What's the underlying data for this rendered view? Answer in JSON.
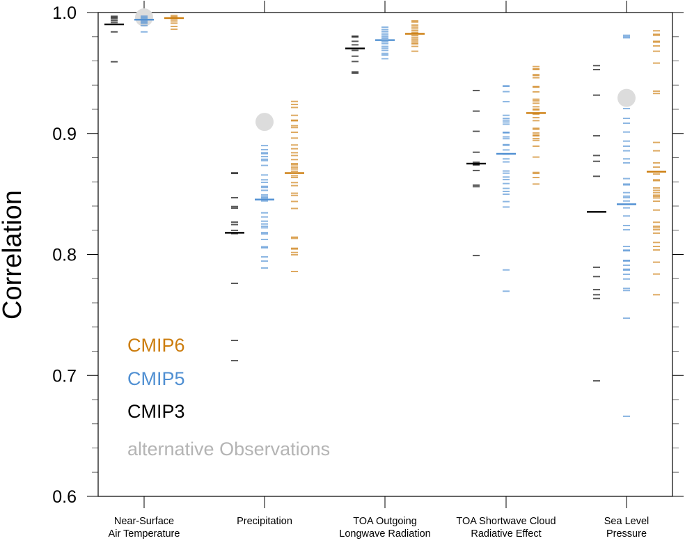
{
  "chart_data": {
    "type": "scatter",
    "title": "",
    "xlabel": "",
    "ylabel": "Correlation",
    "ylim": [
      0.6,
      1.0
    ],
    "yticks": [
      "0.6",
      "0.7",
      "0.8",
      "0.9",
      "1.0"
    ],
    "grid": false,
    "legend_placement": "bottom-left",
    "categories": [
      [
        "Near-Surface",
        "Air Temperature"
      ],
      [
        "Precipitation"
      ],
      [
        "TOA Outgoing",
        "Longwave Radiation"
      ],
      [
        "TOA Shortwave Cloud",
        "Radiative Effect"
      ],
      [
        "Sea Level",
        "Pressure"
      ]
    ],
    "legend": [
      {
        "label": "CMIP6",
        "color": "#cc7d0e"
      },
      {
        "label": "CMIP5",
        "color": "#4f8fd2"
      },
      {
        "label": "CMIP3",
        "color": "#000000"
      },
      {
        "label": "alternative Observations",
        "color": "#b4b4b4"
      }
    ],
    "series": [
      {
        "name": "CMIP3",
        "color": "#000000",
        "means": [
          0.9902,
          0.8179,
          0.9703,
          0.8751,
          0.8352
        ],
        "members": [
          [
            0.9969,
            0.996,
            0.995,
            0.9935,
            0.992,
            0.9905,
            0.984,
            0.9593
          ],
          [
            0.8675,
            0.867,
            0.8469,
            0.8396,
            0.8383,
            0.8267,
            0.8247,
            0.8199,
            0.8172,
            0.7761,
            0.7289,
            0.7122
          ],
          [
            0.9805,
            0.9797,
            0.9762,
            0.9733,
            0.9687,
            0.9639,
            0.9595,
            0.9509,
            0.9499
          ],
          [
            0.9355,
            0.9185,
            0.9018,
            0.8845,
            0.8762,
            0.8745,
            0.874,
            0.8694,
            0.8573,
            0.856,
            0.7991
          ],
          [
            0.9561,
            0.9528,
            0.9317,
            0.8981,
            0.8818,
            0.877,
            0.8646,
            0.7894,
            0.7817,
            0.7709,
            0.7667,
            0.7636,
            0.6955
          ]
        ]
      },
      {
        "name": "CMIP5",
        "color": "#4f8fd2",
        "means": [
          0.9941,
          0.8454,
          0.9772,
          0.8832,
          0.8415
        ],
        "members": [
          [
            0.997,
            0.996,
            0.995,
            0.993,
            0.992,
            0.991,
            0.9892,
            0.984
          ],
          [
            0.89,
            0.8866,
            0.8841,
            0.8833,
            0.8809,
            0.8787,
            0.8776,
            0.8736,
            0.8657,
            0.8617,
            0.8596,
            0.8563,
            0.8554,
            0.853,
            0.8492,
            0.8477,
            0.8467,
            0.8442,
            0.8344,
            0.831,
            0.8275,
            0.8252,
            0.8233,
            0.822,
            0.8181,
            0.817,
            0.8124,
            0.8064,
            0.8055,
            0.798,
            0.7945,
            0.7888
          ],
          [
            0.9879,
            0.986,
            0.9845,
            0.983,
            0.9815,
            0.98,
            0.9787,
            0.9758,
            0.9743,
            0.972,
            0.9705,
            0.9687,
            0.9662,
            0.9649,
            0.9618
          ],
          [
            0.9394,
            0.939,
            0.9346,
            0.9263,
            0.915,
            0.9125,
            0.911,
            0.9095,
            0.9077,
            0.901,
            0.9005,
            0.8972,
            0.8957,
            0.8908,
            0.8903,
            0.8864,
            0.883,
            0.879,
            0.8765,
            0.869,
            0.8672,
            0.864,
            0.8619,
            0.8586,
            0.8546,
            0.8521,
            0.8498,
            0.8437,
            0.8392,
            0.7872,
            0.7696
          ],
          [
            0.9812,
            0.9801,
            0.9791,
            0.9206,
            0.9125,
            0.9085,
            0.9012,
            0.8937,
            0.8895,
            0.8857,
            0.879,
            0.8757,
            0.8627,
            0.8582,
            0.8575,
            0.8511,
            0.8482,
            0.847,
            0.8442,
            0.8385,
            0.8318,
            0.8239,
            0.8204,
            0.8066,
            0.8036,
            0.803,
            0.7951,
            0.7945,
            0.7911,
            0.7878,
            0.787,
            0.7836,
            0.7797,
            0.7719,
            0.7702,
            0.7473,
            0.6662
          ]
        ]
      },
      {
        "name": "CMIP6",
        "color": "#cc7d0e",
        "means": [
          0.9954,
          0.8673,
          0.9824,
          0.9169,
          0.8684
        ],
        "members": [
          [
            0.9975,
            0.9965,
            0.9945,
            0.993,
            0.9912,
            0.9885,
            0.9862
          ],
          [
            0.9265,
            0.924,
            0.9215,
            0.915,
            0.911,
            0.9105,
            0.9064,
            0.9049,
            0.901,
            0.8962,
            0.8905,
            0.8874,
            0.8841,
            0.8818,
            0.8784,
            0.8751,
            0.8741,
            0.8722,
            0.8707,
            0.8688,
            0.865,
            0.8636,
            0.8594,
            0.8569,
            0.8506,
            0.8488,
            0.8438,
            0.838,
            0.8143,
            0.8133,
            0.8051,
            0.8045,
            0.8016,
            0.7997,
            0.7859
          ],
          [
            0.9931,
            0.9921,
            0.9896,
            0.988,
            0.9865,
            0.985,
            0.9835,
            0.981,
            0.9795,
            0.978,
            0.9765,
            0.975,
            0.9741,
            0.972,
            0.968
          ],
          [
            0.9553,
            0.9534,
            0.953,
            0.9486,
            0.948,
            0.9461,
            0.9388,
            0.9383,
            0.9344,
            0.9283,
            0.927,
            0.925,
            0.9221,
            0.9202,
            0.9195,
            0.916,
            0.9131,
            0.9106,
            0.9043,
            0.9035,
            0.9004,
            0.8987,
            0.898,
            0.8958,
            0.8943,
            0.8895,
            0.8805,
            0.8678,
            0.867,
            0.8636,
            0.8582
          ],
          [
            0.9849,
            0.982,
            0.9812,
            0.9762,
            0.9755,
            0.9724,
            0.968,
            0.9582,
            0.935,
            0.9331,
            0.8926,
            0.8857,
            0.8757,
            0.8722,
            0.8665,
            0.8617,
            0.861,
            0.855,
            0.853,
            0.8511,
            0.849,
            0.848,
            0.8467,
            0.844,
            0.8367,
            0.8266,
            0.8233,
            0.822,
            0.8204,
            0.8176,
            0.8099,
            0.8066,
            0.8037,
            0.7936,
            0.7838,
            0.7667
          ]
        ]
      }
    ],
    "observations": [
      0.996,
      0.9096,
      null,
      null,
      0.9294
    ]
  }
}
